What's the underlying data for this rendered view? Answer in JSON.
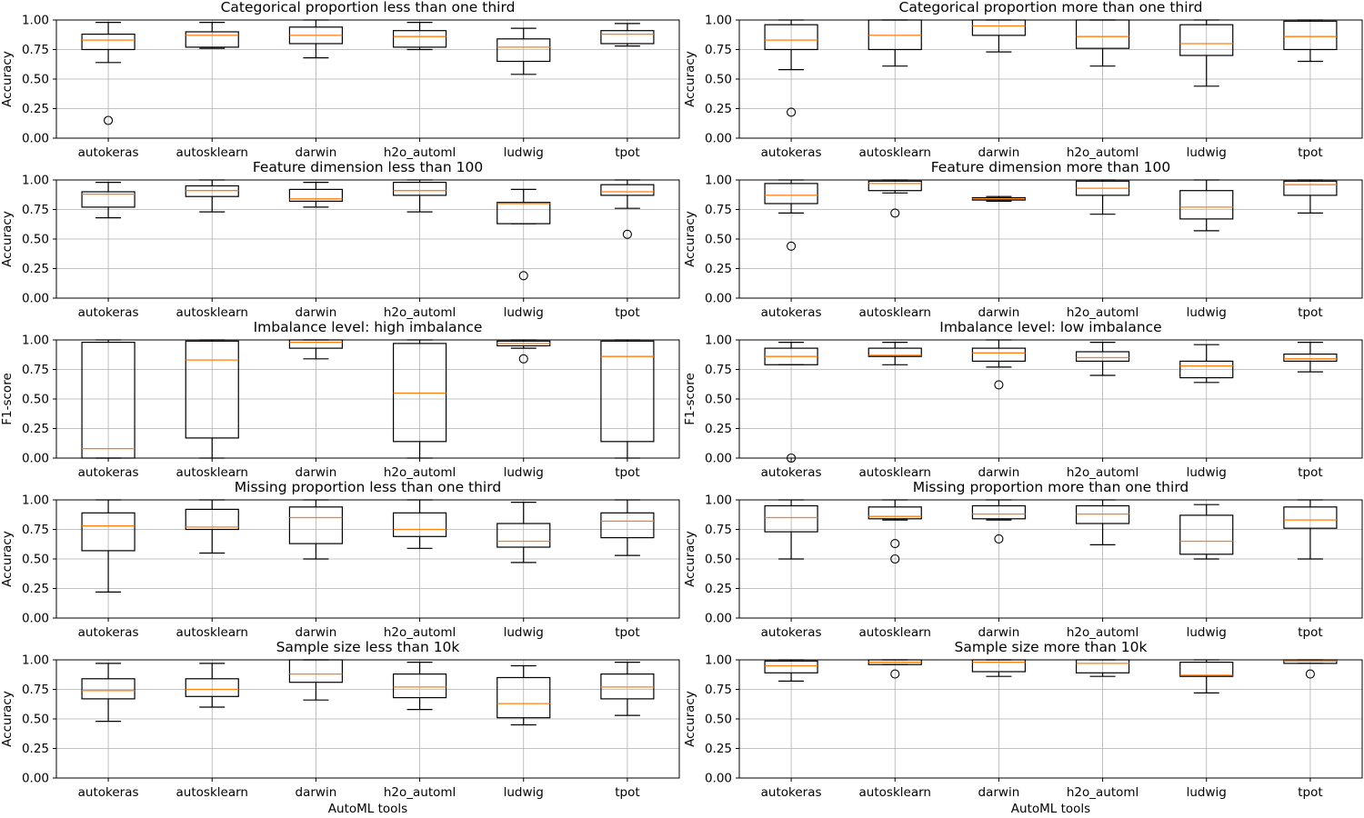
{
  "colors": {
    "box": "#000000",
    "median": "#ff7f0e",
    "grid": "#b0b0b0",
    "background": "#ffffff"
  },
  "chart_data": {
    "type": "boxplot",
    "categories": [
      "autokeras",
      "autosklearn",
      "darwin",
      "h2o_automl",
      "ludwig",
      "tpot"
    ],
    "ylim": [
      0,
      1
    ],
    "yticks": [
      "0.00",
      "0.25",
      "0.50",
      "0.75",
      "1.00"
    ],
    "xlabel": "AutoML tools",
    "grid": true,
    "panels": [
      {
        "title": "Categorical proportion less than one third",
        "ylabel": "Accuracy",
        "boxes": [
          {
            "whislo": 0.64,
            "q1": 0.75,
            "med": 0.83,
            "q3": 0.88,
            "whishi": 0.98,
            "fliers": [
              0.15
            ]
          },
          {
            "whislo": 0.76,
            "q1": 0.77,
            "med": 0.87,
            "q3": 0.9,
            "whishi": 0.98,
            "fliers": []
          },
          {
            "whislo": 0.68,
            "q1": 0.8,
            "med": 0.87,
            "q3": 0.94,
            "whishi": 1.0,
            "fliers": []
          },
          {
            "whislo": 0.75,
            "q1": 0.77,
            "med": 0.86,
            "q3": 0.91,
            "whishi": 0.98,
            "fliers": []
          },
          {
            "whislo": 0.54,
            "q1": 0.65,
            "med": 0.77,
            "q3": 0.84,
            "whishi": 0.93,
            "fliers": []
          },
          {
            "whislo": 0.78,
            "q1": 0.8,
            "med": 0.88,
            "q3": 0.91,
            "whishi": 0.97,
            "fliers": []
          }
        ]
      },
      {
        "title": "Categorical proportion more than one third",
        "ylabel": "Accuracy",
        "boxes": [
          {
            "whislo": 0.58,
            "q1": 0.75,
            "med": 0.83,
            "q3": 0.96,
            "whishi": 1.0,
            "fliers": [
              0.22
            ]
          },
          {
            "whislo": 0.61,
            "q1": 0.75,
            "med": 0.87,
            "q3": 1.0,
            "whishi": 1.0,
            "fliers": []
          },
          {
            "whislo": 0.73,
            "q1": 0.87,
            "med": 0.95,
            "q3": 1.0,
            "whishi": 1.0,
            "fliers": []
          },
          {
            "whislo": 0.61,
            "q1": 0.76,
            "med": 0.86,
            "q3": 1.0,
            "whishi": 1.0,
            "fliers": []
          },
          {
            "whislo": 0.44,
            "q1": 0.7,
            "med": 0.8,
            "q3": 0.96,
            "whishi": 1.0,
            "fliers": []
          },
          {
            "whislo": 0.65,
            "q1": 0.75,
            "med": 0.86,
            "q3": 0.99,
            "whishi": 1.0,
            "fliers": []
          }
        ]
      },
      {
        "title": "Feature dimension less than 100",
        "ylabel": "Accuracy",
        "boxes": [
          {
            "whislo": 0.68,
            "q1": 0.77,
            "med": 0.88,
            "q3": 0.9,
            "whishi": 0.98,
            "fliers": []
          },
          {
            "whislo": 0.73,
            "q1": 0.86,
            "med": 0.91,
            "q3": 0.95,
            "whishi": 1.0,
            "fliers": []
          },
          {
            "whislo": 0.77,
            "q1": 0.82,
            "med": 0.84,
            "q3": 0.92,
            "whishi": 0.98,
            "fliers": []
          },
          {
            "whislo": 0.73,
            "q1": 0.87,
            "med": 0.91,
            "q3": 0.98,
            "whishi": 1.0,
            "fliers": []
          },
          {
            "whislo": 0.63,
            "q1": 0.63,
            "med": 0.8,
            "q3": 0.81,
            "whishi": 0.92,
            "fliers": [
              0.19
            ]
          },
          {
            "whislo": 0.76,
            "q1": 0.87,
            "med": 0.9,
            "q3": 0.96,
            "whishi": 1.0,
            "fliers": [
              0.54
            ]
          }
        ]
      },
      {
        "title": "Feature dimension more than 100",
        "ylabel": "Accuracy",
        "boxes": [
          {
            "whislo": 0.72,
            "q1": 0.8,
            "med": 0.87,
            "q3": 0.97,
            "whishi": 1.0,
            "fliers": [
              0.44
            ]
          },
          {
            "whislo": 0.89,
            "q1": 0.91,
            "med": 0.97,
            "q3": 0.99,
            "whishi": 1.0,
            "fliers": [
              0.72
            ]
          },
          {
            "whislo": 0.82,
            "q1": 0.83,
            "med": 0.84,
            "q3": 0.85,
            "whishi": 0.86,
            "fliers": []
          },
          {
            "whislo": 0.71,
            "q1": 0.87,
            "med": 0.93,
            "q3": 0.99,
            "whishi": 1.0,
            "fliers": []
          },
          {
            "whislo": 0.57,
            "q1": 0.67,
            "med": 0.77,
            "q3": 0.91,
            "whishi": 1.0,
            "fliers": []
          },
          {
            "whislo": 0.72,
            "q1": 0.87,
            "med": 0.96,
            "q3": 0.99,
            "whishi": 1.0,
            "fliers": []
          }
        ]
      },
      {
        "title": "Imbalance level: high imbalance",
        "ylabel": "F1-score",
        "boxes": [
          {
            "whislo": 0.0,
            "q1": 0.0,
            "med": 0.08,
            "q3": 0.98,
            "whishi": 1.0,
            "fliers": []
          },
          {
            "whislo": 0.0,
            "q1": 0.17,
            "med": 0.83,
            "q3": 0.99,
            "whishi": 1.0,
            "fliers": []
          },
          {
            "whislo": 0.84,
            "q1": 0.93,
            "med": 0.98,
            "q3": 1.0,
            "whishi": 1.0,
            "fliers": []
          },
          {
            "whislo": 0.0,
            "q1": 0.14,
            "med": 0.55,
            "q3": 0.97,
            "whishi": 1.0,
            "fliers": []
          },
          {
            "whislo": 0.93,
            "q1": 0.95,
            "med": 0.97,
            "q3": 0.99,
            "whishi": 1.0,
            "fliers": [
              0.84
            ]
          },
          {
            "whislo": 0.0,
            "q1": 0.14,
            "med": 0.86,
            "q3": 0.99,
            "whishi": 1.0,
            "fliers": []
          }
        ]
      },
      {
        "title": "Imbalance level: low imbalance",
        "ylabel": "F1-score",
        "boxes": [
          {
            "whislo": 0.79,
            "q1": 0.79,
            "med": 0.86,
            "q3": 0.93,
            "whishi": 0.98,
            "fliers": [
              0.0
            ]
          },
          {
            "whislo": 0.79,
            "q1": 0.86,
            "med": 0.87,
            "q3": 0.93,
            "whishi": 0.98,
            "fliers": []
          },
          {
            "whislo": 0.77,
            "q1": 0.82,
            "med": 0.89,
            "q3": 0.93,
            "whishi": 1.0,
            "fliers": [
              0.62
            ]
          },
          {
            "whislo": 0.7,
            "q1": 0.82,
            "med": 0.85,
            "q3": 0.9,
            "whishi": 0.98,
            "fliers": []
          },
          {
            "whislo": 0.64,
            "q1": 0.68,
            "med": 0.78,
            "q3": 0.82,
            "whishi": 0.96,
            "fliers": []
          },
          {
            "whislo": 0.73,
            "q1": 0.82,
            "med": 0.84,
            "q3": 0.88,
            "whishi": 0.98,
            "fliers": []
          }
        ]
      },
      {
        "title": "Missing proportion less than one third",
        "ylabel": "Accuracy",
        "boxes": [
          {
            "whislo": 0.22,
            "q1": 0.57,
            "med": 0.78,
            "q3": 0.89,
            "whishi": 1.0,
            "fliers": []
          },
          {
            "whislo": 0.55,
            "q1": 0.75,
            "med": 0.77,
            "q3": 0.92,
            "whishi": 1.0,
            "fliers": []
          },
          {
            "whislo": 0.5,
            "q1": 0.63,
            "med": 0.85,
            "q3": 0.94,
            "whishi": 1.0,
            "fliers": []
          },
          {
            "whislo": 0.59,
            "q1": 0.69,
            "med": 0.75,
            "q3": 0.89,
            "whishi": 1.0,
            "fliers": []
          },
          {
            "whislo": 0.47,
            "q1": 0.6,
            "med": 0.65,
            "q3": 0.8,
            "whishi": 0.98,
            "fliers": []
          },
          {
            "whislo": 0.53,
            "q1": 0.68,
            "med": 0.82,
            "q3": 0.89,
            "whishi": 1.0,
            "fliers": []
          }
        ]
      },
      {
        "title": "Missing proportion more than one third",
        "ylabel": "Accuracy",
        "boxes": [
          {
            "whislo": 0.5,
            "q1": 0.73,
            "med": 0.85,
            "q3": 0.95,
            "whishi": 1.0,
            "fliers": []
          },
          {
            "whislo": 0.83,
            "q1": 0.84,
            "med": 0.86,
            "q3": 0.94,
            "whishi": 1.0,
            "fliers": [
              0.63,
              0.5
            ]
          },
          {
            "whislo": 0.83,
            "q1": 0.84,
            "med": 0.88,
            "q3": 0.95,
            "whishi": 1.0,
            "fliers": [
              0.67
            ]
          },
          {
            "whislo": 0.62,
            "q1": 0.8,
            "med": 0.88,
            "q3": 0.95,
            "whishi": 1.0,
            "fliers": []
          },
          {
            "whislo": 0.5,
            "q1": 0.54,
            "med": 0.65,
            "q3": 0.87,
            "whishi": 0.96,
            "fliers": []
          },
          {
            "whislo": 0.5,
            "q1": 0.76,
            "med": 0.83,
            "q3": 0.94,
            "whishi": 1.0,
            "fliers": []
          }
        ]
      },
      {
        "title": "Sample size less than 10k",
        "ylabel": "Accuracy",
        "boxes": [
          {
            "whislo": 0.48,
            "q1": 0.67,
            "med": 0.74,
            "q3": 0.84,
            "whishi": 0.97,
            "fliers": []
          },
          {
            "whislo": 0.6,
            "q1": 0.69,
            "med": 0.75,
            "q3": 0.84,
            "whishi": 0.97,
            "fliers": []
          },
          {
            "whislo": 0.66,
            "q1": 0.81,
            "med": 0.88,
            "q3": 1.0,
            "whishi": 1.0,
            "fliers": []
          },
          {
            "whislo": 0.58,
            "q1": 0.68,
            "med": 0.77,
            "q3": 0.88,
            "whishi": 0.98,
            "fliers": []
          },
          {
            "whislo": 0.45,
            "q1": 0.51,
            "med": 0.63,
            "q3": 0.85,
            "whishi": 0.95,
            "fliers": []
          },
          {
            "whislo": 0.53,
            "q1": 0.67,
            "med": 0.77,
            "q3": 0.88,
            "whishi": 0.98,
            "fliers": []
          }
        ]
      },
      {
        "title": "Sample size more than 10k",
        "ylabel": "Accuracy",
        "boxes": [
          {
            "whislo": 0.82,
            "q1": 0.89,
            "med": 0.95,
            "q3": 0.99,
            "whishi": 1.0,
            "fliers": []
          },
          {
            "whislo": 0.96,
            "q1": 0.96,
            "med": 0.98,
            "q3": 1.0,
            "whishi": 1.0,
            "fliers": [
              0.88
            ]
          },
          {
            "whislo": 0.86,
            "q1": 0.9,
            "med": 0.98,
            "q3": 1.0,
            "whishi": 1.0,
            "fliers": []
          },
          {
            "whislo": 0.86,
            "q1": 0.89,
            "med": 0.97,
            "q3": 1.0,
            "whishi": 1.0,
            "fliers": []
          },
          {
            "whislo": 0.72,
            "q1": 0.86,
            "med": 0.87,
            "q3": 0.98,
            "whishi": 1.0,
            "fliers": []
          },
          {
            "whislo": 0.97,
            "q1": 0.97,
            "med": 0.99,
            "q3": 1.0,
            "whishi": 1.0,
            "fliers": [
              0.88
            ]
          }
        ]
      }
    ]
  }
}
